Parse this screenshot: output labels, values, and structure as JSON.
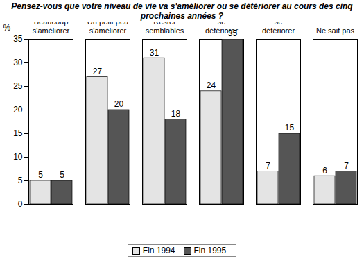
{
  "chart_data": {
    "type": "bar",
    "title": "Pensez-vous que votre niveau de vie va s'améliorer ou se détériorer au cours des cinq prochaines années ?",
    "y_label": "%",
    "categories": [
      "Beaucoup s'améliorer",
      "Un petit peu s'améliorer",
      "Rester semblables",
      "Un petit peu se détériorer",
      "Beaucoup se détériorer",
      "Ne sait pas"
    ],
    "series": [
      {
        "name": "Fin 1994",
        "color": "#e4e4e4",
        "values": [
          5,
          27,
          31,
          24,
          7,
          6
        ]
      },
      {
        "name": "Fin 1995",
        "color": "#555555",
        "values": [
          5,
          20,
          18,
          35,
          15,
          7
        ]
      }
    ],
    "ylim": [
      0,
      35
    ],
    "yticks": [
      0,
      5,
      10,
      15,
      20,
      25,
      30,
      35
    ],
    "grid": false,
    "data_labels": true,
    "legend": "bottom"
  }
}
